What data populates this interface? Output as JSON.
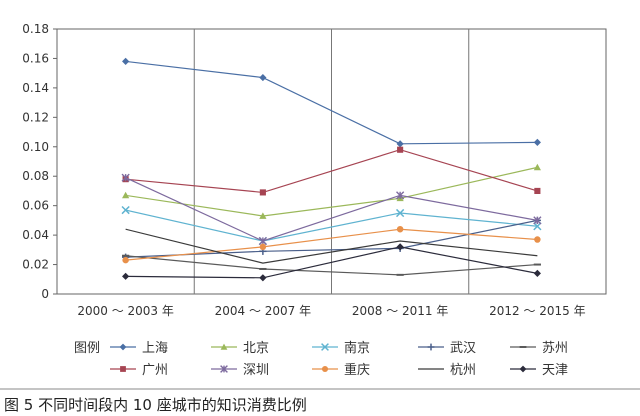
{
  "chart_data": {
    "type": "line",
    "title": "",
    "xlabel": "",
    "ylabel": "",
    "categories": [
      "2000 ～ 2003 年",
      "2004 ～ 2007 年",
      "2008 ～ 2011 年",
      "2012 ～ 2015 年"
    ],
    "ylim": [
      0,
      0.18
    ],
    "yticks": [
      "0",
      "0.02",
      "0.04",
      "0.06",
      "0.08",
      "0.10",
      "0.12",
      "0.14",
      "0.16",
      "0.18"
    ],
    "grid": "vertical-separators",
    "legend_title": "图例",
    "legend_position": "bottom",
    "series": [
      {
        "name": "上海",
        "color": "#4a6fa5",
        "marker": "diamond",
        "values": [
          0.158,
          0.147,
          0.102,
          0.103
        ]
      },
      {
        "name": "北京",
        "color": "#9bb85a",
        "marker": "triangle",
        "values": [
          0.067,
          0.053,
          0.065,
          0.086
        ]
      },
      {
        "name": "南京",
        "color": "#5fb3d0",
        "marker": "x",
        "values": [
          0.057,
          0.036,
          0.055,
          0.046
        ]
      },
      {
        "name": "武汉",
        "color": "#4a5f8a",
        "marker": "plus",
        "values": [
          0.025,
          0.029,
          0.031,
          0.05
        ]
      },
      {
        "name": "苏州",
        "color": "#5a5a5a",
        "marker": "dash",
        "values": [
          0.026,
          0.017,
          0.013,
          0.02
        ]
      },
      {
        "name": "广州",
        "color": "#a64452",
        "marker": "square",
        "values": [
          0.078,
          0.069,
          0.098,
          0.07
        ]
      },
      {
        "name": "深圳",
        "color": "#7d6a9e",
        "marker": "star",
        "values": [
          0.079,
          0.036,
          0.067,
          0.05
        ]
      },
      {
        "name": "重庆",
        "color": "#e8904a",
        "marker": "circle",
        "values": [
          0.023,
          0.032,
          0.044,
          0.037
        ]
      },
      {
        "name": "杭州",
        "color": "#3a3a3a",
        "marker": "none",
        "values": [
          0.044,
          0.021,
          0.036,
          0.026
        ]
      },
      {
        "name": "天津",
        "color": "#2b2b3b",
        "marker": "diamond",
        "values": [
          0.012,
          0.011,
          0.032,
          0.014
        ]
      }
    ]
  },
  "caption": "图 5  不同时间段内 10 座城市的知识消费比例"
}
